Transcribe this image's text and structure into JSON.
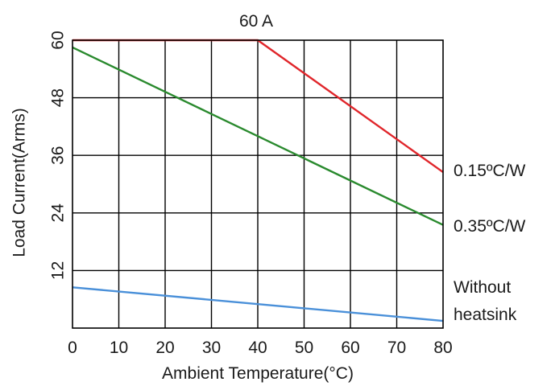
{
  "chart_data": {
    "type": "line",
    "title": "60 A",
    "xlabel": "Ambient Temperature(°C)",
    "ylabel": "Load Current(Arms)",
    "xlim": [
      0,
      80
    ],
    "ylim": [
      0,
      60
    ],
    "x_ticks": [
      "0",
      "10",
      "20",
      "30",
      "40",
      "50",
      "60",
      "70",
      "80"
    ],
    "y_ticks": [
      "12",
      "24",
      "36",
      "48",
      "60"
    ],
    "grid": true,
    "series": [
      {
        "name": "0.15ºC/W",
        "color": "#e0262b",
        "points": [
          [
            0,
            60
          ],
          [
            40,
            60
          ],
          [
            80,
            32.5
          ]
        ]
      },
      {
        "name": "0.35ºC/W",
        "color": "#2a8a2e",
        "points": [
          [
            0,
            58.5
          ],
          [
            80,
            21.5
          ]
        ]
      },
      {
        "name": "Without heatsink",
        "color": "#4a90d9",
        "points": [
          [
            0,
            8.5
          ],
          [
            80,
            1.5
          ]
        ]
      }
    ],
    "series_labels": [
      {
        "line1": "0.15ºC/W",
        "line2": ""
      },
      {
        "line1": "0.35ºC/W",
        "line2": ""
      },
      {
        "line1": "Without",
        "line2": "heatsink"
      }
    ]
  }
}
